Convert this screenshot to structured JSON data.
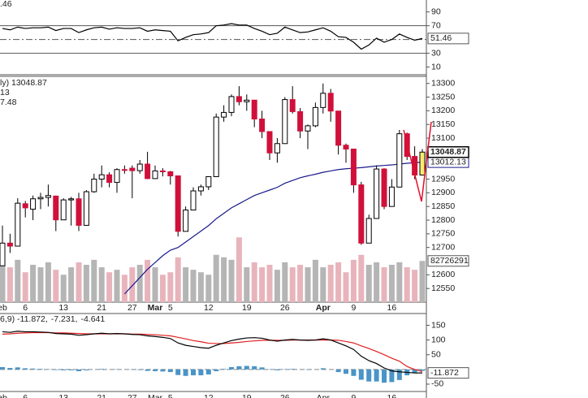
{
  "chart_data": {
    "type": "candlestick",
    "categories": [
      "eb",
      null,
      null,
      "6",
      null,
      null,
      null,
      null,
      "13",
      null,
      null,
      null,
      null,
      "21",
      null,
      null,
      null,
      "27",
      null,
      null,
      "Mar",
      null,
      "5",
      null,
      null,
      null,
      null,
      "12",
      null,
      null,
      null,
      null,
      "19",
      null,
      null,
      null,
      null,
      "26",
      null,
      null,
      null,
      null,
      "Apr",
      null,
      null,
      null,
      "9",
      null,
      null,
      null,
      null,
      "16",
      null,
      null,
      null,
      null
    ],
    "open": [
      12633,
      12716,
      12705,
      12860,
      12840,
      12878,
      12883,
      12888,
      12801,
      12874,
      12878,
      12781,
      12904,
      12950,
      12966,
      12938,
      12985,
      12990,
      12981,
      13005,
      12952,
      12980,
      12977,
      12962,
      12759,
      12837,
      12907,
      12922,
      12959,
      13177,
      13194,
      13252,
      13233,
      13239,
      13170,
      13124,
      13046,
      13080,
      13241,
      13197,
      13126,
      13145,
      13212,
      13264,
      13199,
      13074,
      13060,
      12929,
      12716,
      12806,
      12987,
      12850,
      12921,
      13116,
      13033,
      12965
    ],
    "high": [
      12780,
      12750,
      12880,
      12870,
      12890,
      12900,
      12930,
      12890,
      12880,
      12885,
      12900,
      12910,
      12970,
      13000,
      12975,
      12990,
      13000,
      13000,
      13020,
      13050,
      13000,
      12990,
      12980,
      12962,
      12850,
      12920,
      12930,
      12960,
      13190,
      13220,
      13260,
      13290,
      13260,
      13239,
      13200,
      13124,
      13100,
      13250,
      13290,
      13210,
      13150,
      13230,
      13300,
      13280,
      13199,
      13080,
      13060,
      12940,
      12820,
      13000,
      12990,
      12950,
      13130,
      13120,
      13070,
      13060
    ],
    "low": [
      12633,
      12680,
      12705,
      12810,
      12800,
      12840,
      12850,
      12760,
      12801,
      12780,
      12760,
      12781,
      12900,
      12920,
      12920,
      12900,
      12970,
      12880,
      12970,
      12950,
      12950,
      12960,
      12930,
      12740,
      12759,
      12837,
      12890,
      12910,
      12959,
      13160,
      13180,
      13220,
      13200,
      13140,
      13100,
      13020,
      13010,
      13080,
      13190,
      13100,
      13060,
      13140,
      13190,
      13160,
      13040,
      13010,
      12900,
      12710,
      12716,
      12806,
      12840,
      12850,
      12921,
      13020,
      12950,
      12965
    ],
    "close": [
      12716,
      12705,
      12862,
      12845,
      12878,
      12883,
      12890,
      12801,
      12874,
      12878,
      12781,
      12904,
      12950,
      12966,
      12938,
      12985,
      12983,
      12981,
      13005,
      12952,
      12980,
      12977,
      12962,
      12759,
      12837,
      12907,
      12922,
      12959,
      13177,
      13194,
      13252,
      13233,
      13239,
      13170,
      13124,
      13046,
      13080,
      13241,
      13197,
      13126,
      13145,
      13212,
      13264,
      13199,
      13074,
      13060,
      12929,
      12716,
      12806,
      12987,
      12850,
      12921,
      13116,
      13033,
      12965,
      13048.87
    ],
    "up_color": "#ffffff",
    "down_color": "#d0103a",
    "last_color": "#f7ec6e",
    "ylim": [
      12500,
      13320
    ],
    "yticks": [
      12550,
      12600,
      12700,
      12750,
      12800,
      12850,
      12900,
      12950,
      13100,
      13150,
      13200,
      13250,
      13300
    ],
    "legend": [
      {
        "text": "ly) 13048.87",
        "color": "#000000"
      },
      {
        "text": "13",
        "color": "#1a1a8c"
      },
      {
        "text": "7.48",
        "color": "#d0103a"
      }
    ],
    "ma": {
      "color": "#1a1a8c",
      "values": [
        null,
        null,
        null,
        null,
        null,
        null,
        null,
        null,
        null,
        null,
        null,
        null,
        null,
        null,
        null,
        null,
        12530,
        12560,
        12590,
        12620,
        12645,
        12670,
        12690,
        12700,
        12720,
        12740,
        12760,
        12780,
        12805,
        12825,
        12845,
        12860,
        12875,
        12890,
        12900,
        12910,
        12920,
        12935,
        12945,
        12955,
        12962,
        12968,
        12975,
        12980,
        12985,
        12988,
        12990,
        12992,
        12995,
        12998,
        13000,
        13002,
        13005,
        13008,
        13010,
        13012.13
      ]
    },
    "volume": {
      "up_color": "#b5b5b5",
      "down_color": "#e8b4bc",
      "ylim": [
        0,
        450000000
      ],
      "values": [
        80000000,
        70000000,
        85000000,
        60000000,
        75000000,
        70000000,
        80000000,
        65000000,
        55000000,
        70000000,
        80000000,
        75000000,
        85000000,
        70000000,
        60000000,
        65000000,
        55000000,
        70000000,
        75000000,
        85000000,
        70000000,
        55000000,
        60000000,
        90000000,
        70000000,
        65000000,
        60000000,
        55000000,
        95000000,
        90000000,
        85000000,
        130000000,
        70000000,
        80000000,
        70000000,
        75000000,
        65000000,
        80000000,
        70000000,
        75000000,
        70000000,
        85000000,
        70000000,
        75000000,
        80000000,
        60000000,
        85000000,
        95000000,
        75000000,
        80000000,
        70000000,
        75000000,
        80000000,
        70000000,
        65000000,
        82726291
      ]
    },
    "rsi": {
      "legend": ".46",
      "color": "#000000",
      "ylim": [
        0,
        105
      ],
      "yticks": [
        10,
        30,
        70,
        90
      ],
      "levels": [
        70,
        50,
        30
      ],
      "values": [
        66,
        64,
        68,
        66,
        67,
        67,
        68,
        63,
        66,
        66,
        60,
        64,
        67,
        68,
        65,
        67,
        66,
        66,
        67,
        62,
        64,
        63,
        62,
        48,
        53,
        57,
        58,
        60,
        70,
        71,
        73,
        71,
        71,
        66,
        62,
        57,
        59,
        68,
        64,
        60,
        61,
        64,
        67,
        62,
        54,
        53,
        46,
        36,
        42,
        52,
        46,
        50,
        58,
        53,
        49,
        51.46
      ]
    },
    "macd": {
      "ylim": [
        -75,
        190
      ],
      "yticks": [
        -50,
        50,
        100,
        150
      ],
      "legend": [
        {
          "text": "6,9) -11.872,",
          "color": "#000000"
        },
        {
          "text": "-7.231,",
          "color": "#d0103a"
        },
        {
          "text": "-4.641",
          "color": "#1a7fbf"
        }
      ],
      "macd_color": "#000000",
      "signal_color": "#e02020",
      "hist_color": "#4a94c8",
      "values": [
        128,
        126,
        130,
        128,
        128,
        127,
        126,
        122,
        121,
        120,
        116,
        118,
        121,
        123,
        121,
        122,
        121,
        119,
        118,
        114,
        112,
        109,
        105,
        90,
        82,
        78,
        74,
        72,
        82,
        90,
        98,
        103,
        107,
        108,
        106,
        100,
        96,
        100,
        102,
        100,
        99,
        100,
        104,
        100,
        90,
        80,
        68,
        45,
        30,
        20,
        5,
        -5,
        -8,
        -10,
        -12,
        -11.872
      ],
      "signal": [
        120,
        121,
        123,
        124,
        125,
        125,
        125,
        124,
        124,
        123,
        122,
        121,
        121,
        121,
        121,
        121,
        121,
        120,
        120,
        119,
        118,
        116,
        114,
        109,
        104,
        98,
        94,
        89,
        88,
        88,
        90,
        92,
        95,
        97,
        99,
        99,
        99,
        99,
        100,
        100,
        100,
        100,
        100,
        100,
        99,
        95,
        90,
        80,
        71,
        61,
        50,
        38,
        28,
        10,
        0,
        -7.231
      ],
      "hist": [
        8,
        5,
        7,
        4,
        3,
        2,
        1,
        -2,
        -3,
        -3,
        -6,
        -3,
        0,
        2,
        0,
        1,
        0,
        -1,
        -2,
        -5,
        -6,
        -7,
        -9,
        -19,
        -22,
        -20,
        -20,
        -17,
        -6,
        2,
        8,
        11,
        12,
        11,
        7,
        1,
        -3,
        1,
        2,
        0,
        -1,
        0,
        4,
        0,
        -9,
        -15,
        -22,
        -35,
        -41,
        -41,
        -45,
        -43,
        -36,
        -20,
        -12,
        -4.641
      ]
    }
  }
}
